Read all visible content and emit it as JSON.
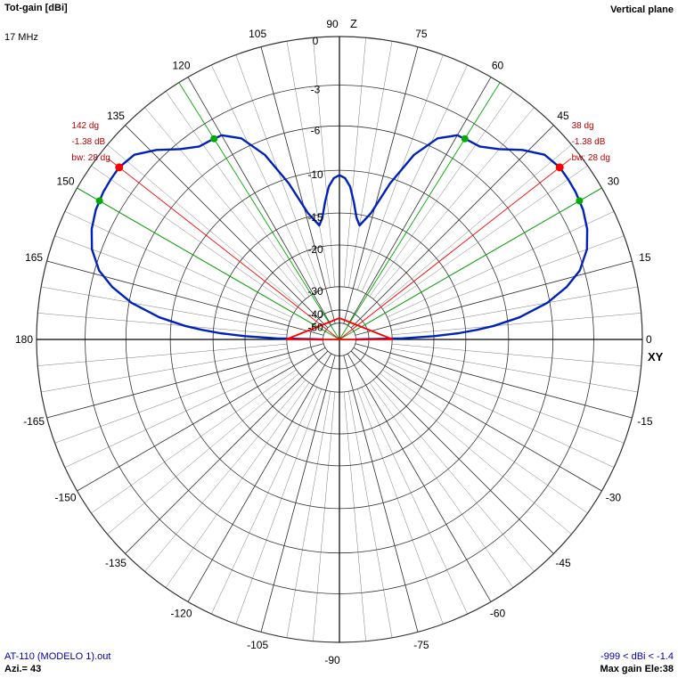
{
  "header": {
    "title": "Tot-gain [dBi]",
    "frequency": "17 MHz",
    "plane": "Vertical plane"
  },
  "footer": {
    "file": "AT-110 (MODELO 1).out",
    "azimuth": "Azi.= 43",
    "range": "-999 < dBi < -1.4",
    "max_gain": "Max gain Ele:38"
  },
  "colors": {
    "pattern": "#0022bb",
    "grid": "#7a7a7a",
    "axis": "#000000",
    "beamwidth_marker": "#ff0000",
    "green_marker": "#00aa00",
    "annotation": "#bb0000"
  },
  "chart_data": {
    "type": "polar",
    "title": "Tot-gain [dBi]",
    "angle_unit": "degrees",
    "axis_labels": {
      "up": "Z",
      "right": "XY"
    },
    "angle_tick_labels": [
      "0",
      "15",
      "30",
      "45",
      "60",
      "75",
      "90",
      "105",
      "120",
      "135",
      "150",
      "165",
      "180",
      "-165",
      "-150",
      "-135",
      "-120",
      "-105",
      "-90",
      "-75",
      "-60",
      "-45",
      "-30",
      "-15"
    ],
    "angle_tick_values": [
      0,
      15,
      30,
      45,
      60,
      75,
      90,
      105,
      120,
      135,
      150,
      165,
      180,
      -165,
      -150,
      -135,
      -120,
      -105,
      -90,
      -75,
      -60,
      -45,
      -30,
      -15
    ],
    "radial_tick_labels": [
      "0",
      "-3",
      "-6",
      "-10",
      "-15",
      "-20",
      "-30",
      "-40",
      "-50"
    ],
    "radial_tick_values": [
      0,
      -3,
      -6,
      -10,
      -15,
      -20,
      -30,
      -40,
      -50
    ],
    "series": [
      {
        "elevation_deg": [
          0,
          1,
          2,
          3,
          4,
          5,
          7,
          10,
          13,
          16,
          20,
          24,
          28,
          32,
          35,
          38,
          42,
          46,
          50,
          54,
          57,
          60,
          64,
          68,
          72,
          76,
          80,
          82,
          84,
          86,
          88,
          90,
          92,
          94,
          96,
          98,
          100,
          104,
          108,
          112,
          116,
          120,
          123,
          126,
          130,
          134,
          138,
          142,
          145,
          148,
          152,
          156,
          160,
          164,
          167,
          170,
          173,
          175,
          176,
          177,
          178,
          179,
          180
        ],
        "gain_dbi": [
          -50,
          -27,
          -20,
          -16,
          -13.5,
          -11.5,
          -8.8,
          -6.2,
          -4.5,
          -3.3,
          -2.4,
          -1.9,
          -1.6,
          -1.45,
          -1.4,
          -1.38,
          -1.6,
          -2.4,
          -3.4,
          -4.1,
          -4.2,
          -4.3,
          -5.2,
          -7.2,
          -10.5,
          -14.5,
          -16.5,
          -15.5,
          -13.5,
          -11.7,
          -10.8,
          -10.5,
          -10.8,
          -11.7,
          -13.5,
          -15.5,
          -16.5,
          -14.5,
          -10.5,
          -7.2,
          -5.2,
          -4.3,
          -4.2,
          -4.1,
          -3.4,
          -2.4,
          -1.6,
          -1.38,
          -1.4,
          -1.45,
          -1.6,
          -1.9,
          -2.4,
          -3.3,
          -4.5,
          -6.2,
          -8.8,
          -11.5,
          -13.5,
          -16,
          -20,
          -27,
          -50
        ]
      }
    ],
    "max_gain_elevation_deg": [
      38,
      142
    ],
    "beamwidth_markers_deg": [
      30,
      58,
      122,
      150
    ],
    "annotations": [
      {
        "angle_deg": 38,
        "lines": [
          "38 dg",
          "-1.38 dB",
          "bw: 28 dg"
        ]
      },
      {
        "angle_deg": 142,
        "lines": [
          "142 dg",
          "-1.38 dB",
          "bw: 28 dg"
        ]
      }
    ]
  }
}
